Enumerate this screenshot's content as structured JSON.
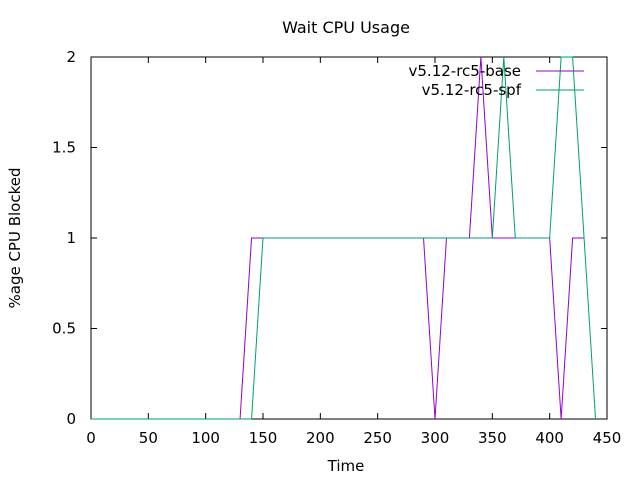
{
  "chart_data": {
    "type": "line",
    "title": "Wait CPU Usage",
    "xlabel": "Time",
    "ylabel": "%age CPU Blocked",
    "xlim": [
      0,
      450
    ],
    "ylim": [
      0,
      2
    ],
    "xticks": [
      0,
      50,
      100,
      150,
      200,
      250,
      300,
      350,
      400,
      450
    ],
    "yticks": [
      0,
      0.5,
      1,
      1.5,
      2
    ],
    "xtick_labels": [
      "0",
      "50",
      "100",
      "150",
      "200",
      "250",
      "300",
      "350",
      "400",
      "450"
    ],
    "ytick_labels": [
      "0",
      "0.5",
      "1",
      "1.5",
      "2"
    ],
    "grid": false,
    "legend_position": "top-right",
    "series": [
      {
        "name": "v5.12-rc5-base",
        "color": "#9400d3",
        "x": [
          0,
          10,
          20,
          30,
          40,
          50,
          60,
          70,
          80,
          90,
          100,
          110,
          120,
          130,
          140,
          150,
          160,
          170,
          180,
          190,
          200,
          210,
          220,
          230,
          240,
          250,
          260,
          270,
          280,
          290,
          300,
          310,
          320,
          330,
          340,
          350,
          360,
          370,
          380,
          390,
          400,
          410,
          420,
          430
        ],
        "y": [
          0,
          0,
          0,
          0,
          0,
          0,
          0,
          0,
          0,
          0,
          0,
          0,
          0,
          0,
          1,
          1,
          1,
          1,
          1,
          1,
          1,
          1,
          1,
          1,
          1,
          1,
          1,
          1,
          1,
          1,
          0,
          1,
          1,
          1,
          2,
          1,
          1,
          1,
          1,
          1,
          1,
          0,
          1,
          1
        ]
      },
      {
        "name": "v5.12-rc5-spf",
        "color": "#009e73",
        "x": [
          0,
          10,
          20,
          30,
          40,
          50,
          60,
          70,
          80,
          90,
          100,
          110,
          120,
          130,
          140,
          150,
          160,
          170,
          180,
          190,
          200,
          210,
          220,
          230,
          240,
          250,
          260,
          270,
          280,
          290,
          300,
          310,
          320,
          330,
          340,
          350,
          360,
          370,
          380,
          390,
          400,
          410,
          420,
          430,
          440
        ],
        "y": [
          0,
          0,
          0,
          0,
          0,
          0,
          0,
          0,
          0,
          0,
          0,
          0,
          0,
          0,
          0,
          1,
          1,
          1,
          1,
          1,
          1,
          1,
          1,
          1,
          1,
          1,
          1,
          1,
          1,
          1,
          1,
          1,
          1,
          1,
          1,
          1,
          2,
          1,
          1,
          1,
          1,
          2,
          2,
          1,
          0
        ]
      }
    ]
  }
}
